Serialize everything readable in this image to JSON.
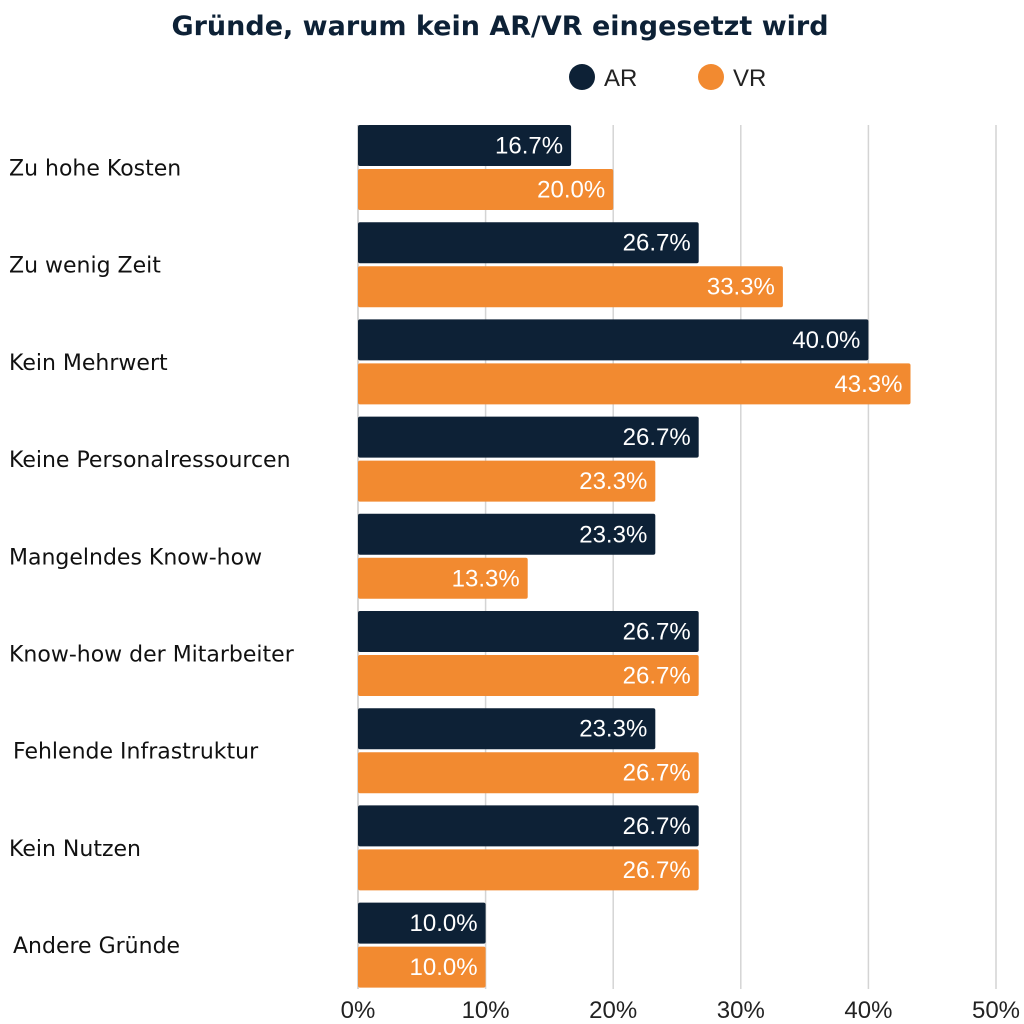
{
  "chart_data": {
    "type": "bar",
    "orientation": "horizontal",
    "title": "Gründe, warum kein AR/VR eingesetzt wird",
    "categories": [
      "Zu hohe Kosten",
      "Zu wenig Zeit",
      "Kein Mehrwert",
      "Keine Personalressourcen",
      "Mangelndes Know-how",
      "Know-how der Mitarbeiter",
      "Fehlende Infrastruktur",
      "Kein Nutzen",
      "Andere Gründe"
    ],
    "series": [
      {
        "name": "AR",
        "color": "#0d2136",
        "values": [
          16.7,
          26.7,
          40.0,
          26.7,
          23.3,
          26.7,
          23.3,
          26.7,
          10.0
        ],
        "labels": [
          "16.7%",
          "26.7%",
          "40.0%",
          "26.7%",
          "23.3%",
          "26.7%",
          "23.3%",
          "26.7%",
          "10.0%"
        ]
      },
      {
        "name": "VR",
        "color": "#f28a30",
        "values": [
          20.0,
          33.3,
          43.3,
          23.3,
          13.3,
          26.7,
          26.7,
          26.7,
          10.0
        ],
        "labels": [
          "20.0%",
          "33.3%",
          "43.3%",
          "23.3%",
          "13.3%",
          "26.7%",
          "26.7%",
          "26.7%",
          "10.0%"
        ]
      }
    ],
    "xlim": [
      0,
      50
    ],
    "x_ticks": [
      0,
      10,
      20,
      30,
      40,
      50
    ],
    "x_tick_labels": [
      "0%",
      "10%",
      "20%",
      "30%",
      "40%",
      "50%"
    ],
    "grid": true,
    "legend_position": "top-right"
  }
}
